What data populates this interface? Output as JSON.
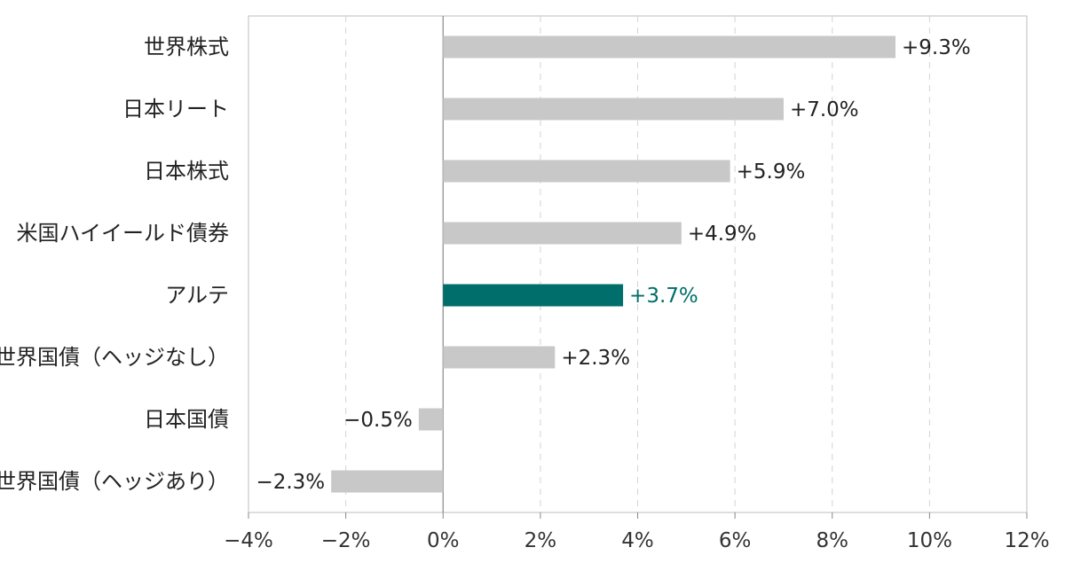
{
  "chart_data": {
    "type": "bar",
    "orientation": "horizontal",
    "categories": [
      "世界株式",
      "日本リート",
      "日本株式",
      "米国ハイイールド債券",
      "アルテ",
      "世界国債（ヘッジなし）",
      "日本国債",
      "世界国債（ヘッジあり）"
    ],
    "values": [
      9.3,
      7.0,
      5.9,
      4.9,
      3.7,
      2.3,
      -0.5,
      -2.3
    ],
    "value_labels": [
      "+9.3%",
      "+7.0%",
      "+5.9%",
      "+4.9%",
      "+3.7%",
      "+2.3%",
      "−0.5%",
      "−2.3%"
    ],
    "highlight_index": 4,
    "xlim": [
      -4,
      12
    ],
    "x_ticks": [
      -4,
      -2,
      0,
      2,
      4,
      6,
      8,
      10,
      12
    ],
    "x_tick_labels": [
      "−4%",
      "−2%",
      "0%",
      "2%",
      "4%",
      "6%",
      "8%",
      "10%",
      "12%"
    ],
    "grid": "vertical dashed",
    "legend": "none",
    "title": "",
    "xlabel": "",
    "ylabel": ""
  },
  "colors": {
    "bar": "#c8c8c8",
    "highlight": "#006e6a",
    "text": "#222222",
    "grid": "#d4d4d4",
    "axis": "#888888"
  }
}
